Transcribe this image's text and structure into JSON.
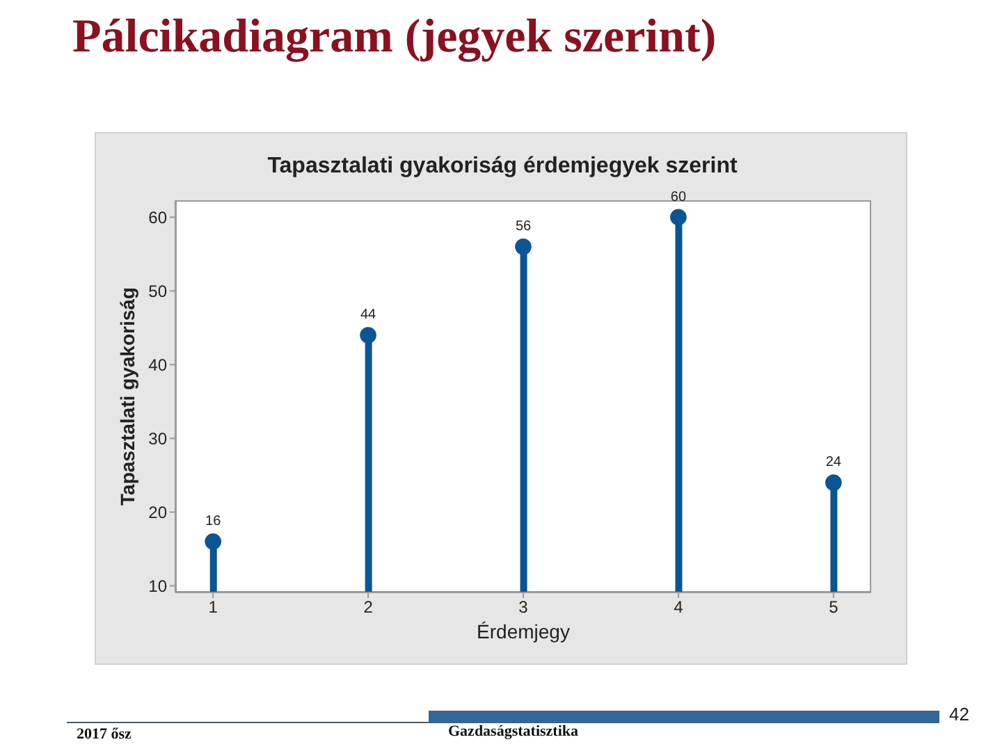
{
  "chart_data": {
    "type": "lollipop",
    "title": "Pálcikadiagram (jegyek szerint)",
    "subtitle": "Tapasztalati gyakoriság érdemjegyek szerint",
    "xlabel": "Érdemjegy",
    "ylabel": "Tapasztalati gyakoriság",
    "categories": [
      "1",
      "2",
      "3",
      "4",
      "5"
    ],
    "values": [
      16,
      44,
      56,
      60,
      24
    ],
    "color": "#0b5595",
    "ylim": [
      9.1,
      62.3
    ],
    "yticks": [
      10,
      20,
      30,
      40,
      50,
      60
    ],
    "marker": "circle",
    "data_labels": true,
    "annotations": [
      "2017 ősz",
      "Gazdaságstatisztika",
      "42"
    ]
  }
}
